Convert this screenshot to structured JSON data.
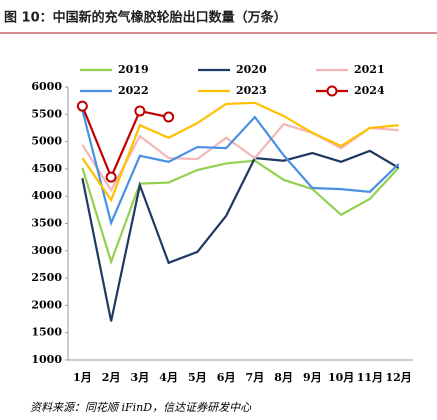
{
  "chart_data": {
    "type": "line",
    "title": "图 10：中国新的充气橡胶轮胎出口数量（万条）",
    "source": "资料来源：同花顺 iFinD，信达证券研发中心",
    "categories": [
      "1月",
      "2月",
      "3月",
      "4月",
      "5月",
      "6月",
      "7月",
      "8月",
      "9月",
      "10月",
      "11月",
      "12月"
    ],
    "series": [
      {
        "name": "2019",
        "color": "#92d050",
        "values": [
          4520,
          2800,
          4230,
          4250,
          4480,
          4600,
          4650,
          4300,
          4130,
          3660,
          3950,
          4520
        ]
      },
      {
        "name": "2020",
        "color": "#203864",
        "values": [
          4330,
          1710,
          4200,
          2780,
          2980,
          3640,
          4700,
          4650,
          4790,
          4630,
          4830,
          4520
        ]
      },
      {
        "name": "2021",
        "color": "#f4b6b6",
        "values": [
          4940,
          4110,
          5100,
          4700,
          4680,
          5070,
          4700,
          5320,
          5160,
          4880,
          5250,
          5210
        ]
      },
      {
        "name": "2022",
        "color": "#4a90e2",
        "values": [
          5580,
          3510,
          4740,
          4630,
          4900,
          4880,
          5450,
          4750,
          4150,
          4130,
          4080,
          4590
        ]
      },
      {
        "name": "2023",
        "color": "#ffc000",
        "values": [
          4700,
          3930,
          5300,
          5070,
          5340,
          5690,
          5710,
          5470,
          5160,
          4920,
          5250,
          5300
        ]
      },
      {
        "name": "2024",
        "color": "#c00000",
        "marker": "circle",
        "values": [
          5650,
          4350,
          5560,
          5450,
          null,
          null,
          null,
          null,
          null,
          null,
          null,
          null
        ]
      }
    ],
    "ylim": [
      1000,
      6000
    ],
    "yticks": [
      1000,
      1500,
      2000,
      2500,
      3000,
      3500,
      4000,
      4500,
      5000,
      5500,
      6000
    ],
    "grid": false
  }
}
